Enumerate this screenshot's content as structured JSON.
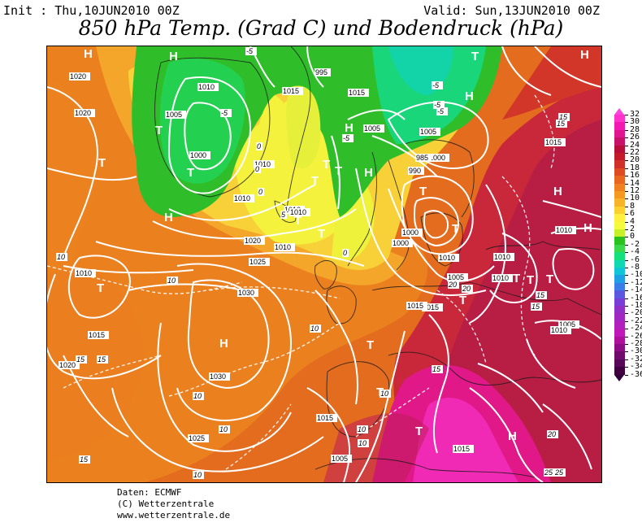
{
  "header": {
    "init": "Init : Thu,10JUN2010 00Z",
    "valid": "Valid: Sun,13JUN2010 00Z",
    "title": "850 hPa Temp. (Grad C) und Bodendruck (hPa)"
  },
  "credits": {
    "line1": "Daten: ECMWF",
    "line2": "(C) Wetterzentrale",
    "line3": "www.wetterzentrale.de"
  },
  "legend": {
    "levels": [
      "32",
      "30",
      "28",
      "26",
      "24",
      "22",
      "20",
      "18",
      "16",
      "14",
      "12",
      "10",
      "8",
      "6",
      "4",
      "2",
      "0",
      "-2",
      "-4",
      "-6",
      "-8",
      "-10",
      "-12",
      "-14",
      "-16",
      "-18",
      "-20",
      "-22",
      "-24",
      "-26",
      "-28",
      "-30",
      "-32",
      "-34",
      "-36"
    ],
    "colors": [
      "#ff33cc",
      "#f21ab0",
      "#e0158f",
      "#c8126a",
      "#b80f3a",
      "#c21a28",
      "#d0302a",
      "#de4a22",
      "#e86620",
      "#f08020",
      "#f49a22",
      "#f8b428",
      "#fcd030",
      "#fff040",
      "#f4fa3c",
      "#c8f028",
      "#2cc21e",
      "#3ad84a",
      "#14e07c",
      "#10d8b0",
      "#10c6d6",
      "#20a0e4",
      "#3a7ce8",
      "#5a58e0",
      "#7a3ed8",
      "#9030c8",
      "#a028c0",
      "#b020bc",
      "#c018b8",
      "#ae109c",
      "#8e0c84",
      "#700a6c",
      "#580858",
      "#400040"
    ],
    "top_arrow_color": "#ff44dd",
    "bottom_arrow_color": "#300038"
  },
  "map": {
    "pressure_labels": [
      "1020",
      "1020",
      "1010",
      "1005",
      "1010",
      "1010",
      "1015",
      "995",
      "1005",
      "1000",
      "1000",
      "1015",
      "1005",
      "985",
      "990",
      "1000",
      "1010",
      "1015",
      "1015",
      "1010",
      "1020",
      "1025",
      "1030",
      "1030",
      "1025",
      "1015",
      "1020",
      "1015",
      "1010",
      "1010",
      "1010",
      "1005",
      "1010",
      "1010",
      "1015",
      "1010",
      "1005",
      "1015",
      "1005",
      "1000",
      "1010",
      "1015"
    ],
    "temp_labels": [
      "-5",
      "-5",
      "-5",
      "-5",
      "-5",
      "0",
      "0",
      "0",
      "0",
      "-5",
      "5",
      "10",
      "10",
      "10",
      "10",
      "15",
      "15",
      "15",
      "10",
      "10",
      "15",
      "15",
      "15",
      "20",
      "20",
      "20",
      "25",
      "25",
      "20",
      "15",
      "10",
      "10",
      "10",
      "15"
    ],
    "high_labels": [
      "H",
      "H",
      "H",
      "H",
      "H",
      "H",
      "H",
      "H",
      "H",
      "H",
      "H"
    ],
    "low_labels": [
      "T",
      "T",
      "T",
      "T",
      "T",
      "T",
      "T",
      "T",
      "T",
      "T",
      "T",
      "T",
      "T",
      "T",
      "T",
      "T",
      "T",
      "T",
      "T"
    ]
  }
}
